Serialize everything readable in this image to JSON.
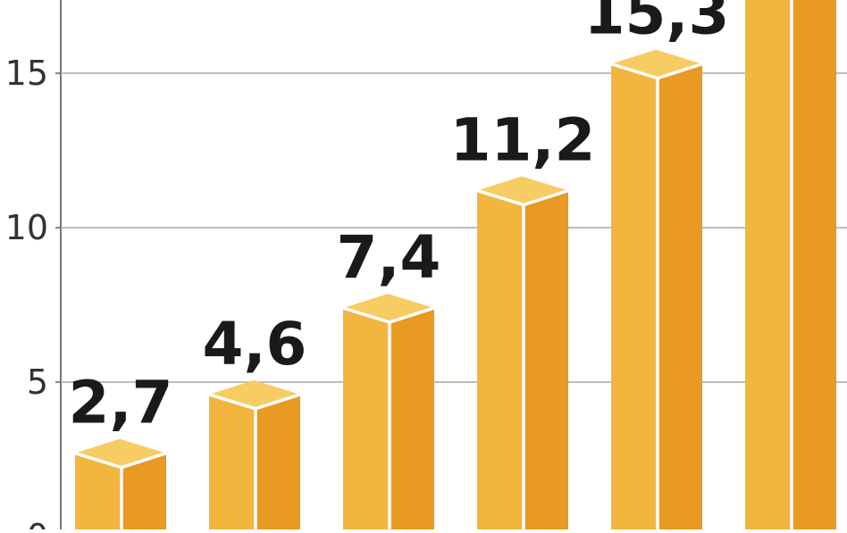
{
  "chart_data": {
    "type": "bar",
    "title": "",
    "xlabel": "",
    "ylabel": "",
    "y_ticks": [
      0,
      5,
      10,
      15
    ],
    "y_tick_labels": [
      "0",
      "5",
      "10",
      "15"
    ],
    "ylim": [
      0,
      17.4
    ],
    "grid": true,
    "values": [
      2.7,
      4.6,
      7.4,
      11.2,
      15.3,
      18.5
    ],
    "value_labels": [
      "2,7",
      "4,6",
      "7,4",
      "11,2",
      "15,3",
      ""
    ],
    "style": "3d-prism",
    "colors": {
      "front": "#f2b53e",
      "side": "#e89a22",
      "top": "#f7cc63",
      "edge": "#ffffff",
      "grid": "#a9a9a9",
      "axis": "#555555",
      "label": "#1a1a1a",
      "tick": "#333333"
    }
  }
}
